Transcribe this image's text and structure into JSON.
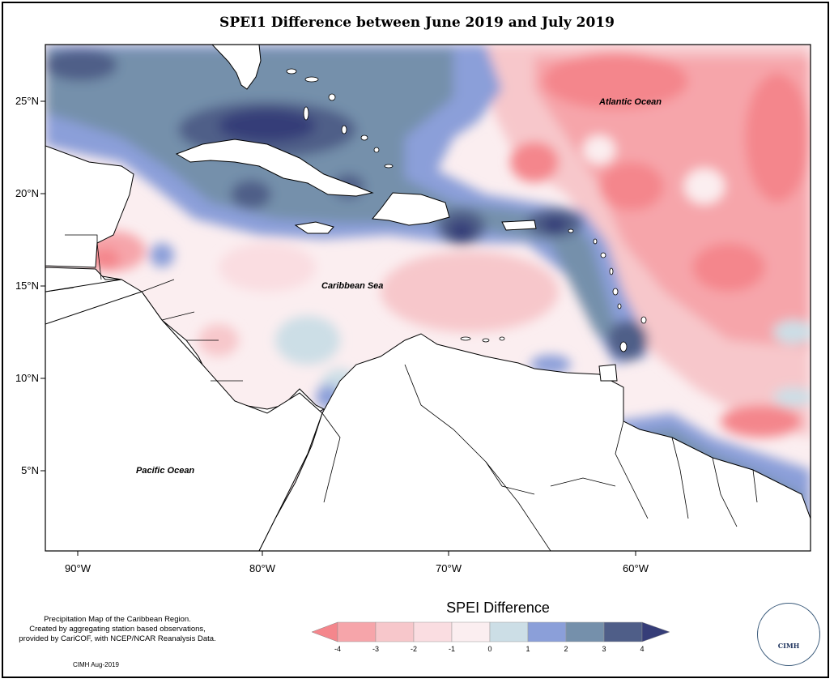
{
  "title": "SPEI1 Difference between June 2019 and July 2019",
  "map": {
    "lat_labels": [
      "25°N",
      "20°N",
      "15°N",
      "10°N",
      "5°N"
    ],
    "lon_labels": [
      "90°W",
      "80°W",
      "70°W",
      "60°W"
    ],
    "ocean_labels": {
      "atlantic": "Atlantic Ocean",
      "caribbean": "Caribbean Sea",
      "pacific": "Pacific Ocean"
    }
  },
  "legend": {
    "title": "SPEI Difference",
    "ticks": [
      "-4",
      "-3",
      "-2",
      "-1",
      "0",
      "1",
      "2",
      "3",
      "4"
    ],
    "colors": [
      "#f4868c",
      "#f6a5aa",
      "#f7c7cb",
      "#fadde1",
      "#fbeef0",
      "#ccdee6",
      "#8b9fd9",
      "#7590ab",
      "#4f5e88",
      "#363d78"
    ]
  },
  "note": {
    "lines": [
      "Precipitation Map of the Caribbean Region.",
      "Created by aggregating station based observations,",
      "provided by CariCOF, with NCEP/NCAR Reanalysis Data."
    ],
    "credit": "CIMH Aug-2019"
  },
  "logo": {
    "text": "CIMH"
  }
}
